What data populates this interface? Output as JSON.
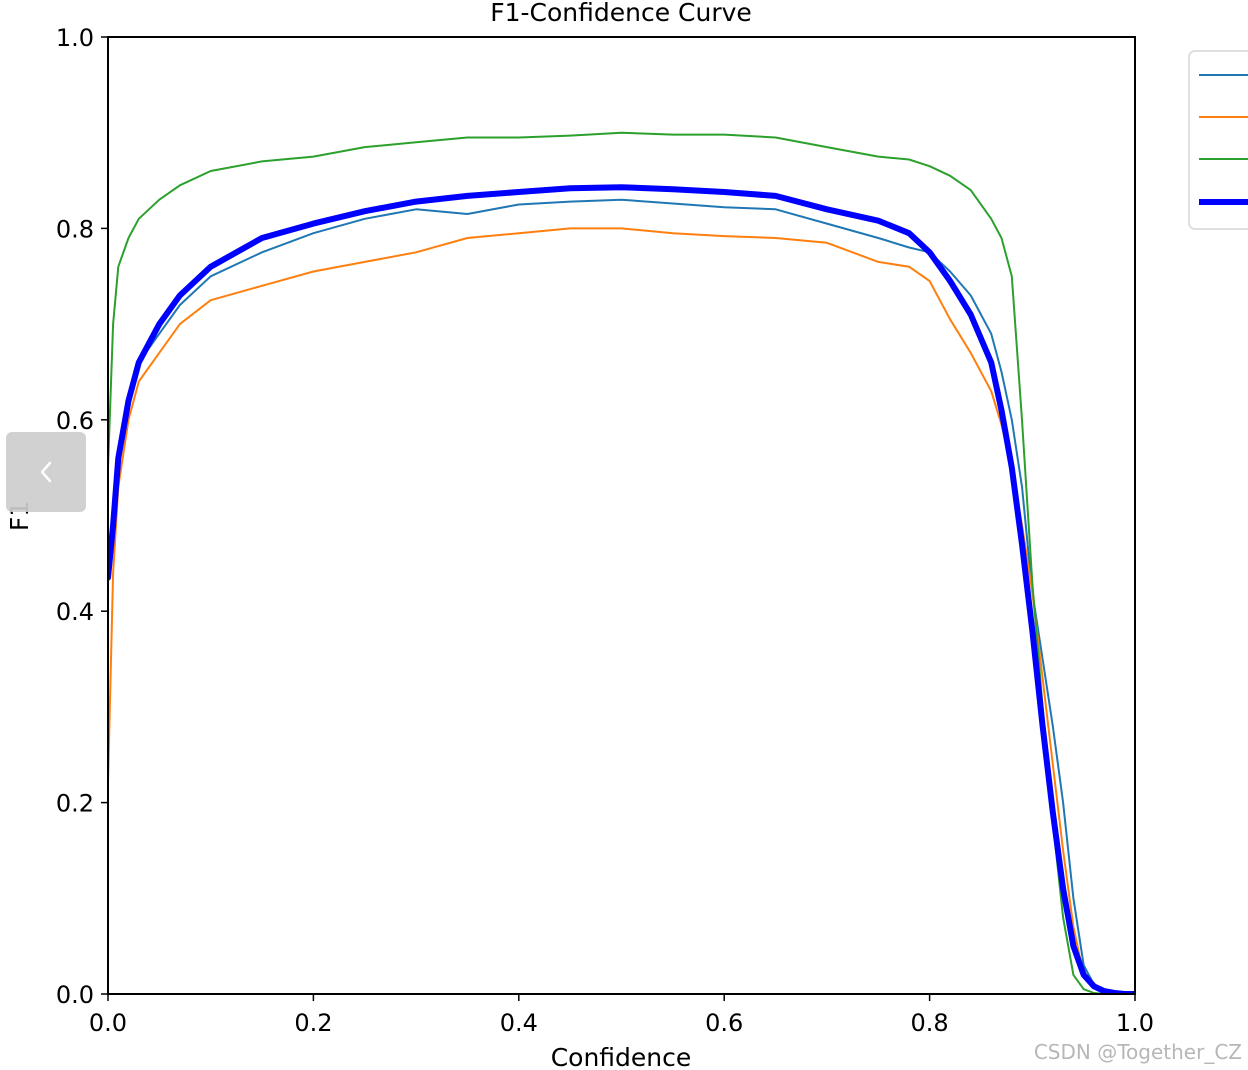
{
  "chart_data": {
    "type": "line",
    "title": "F1-Confidence Curve",
    "xlabel": "Confidence",
    "ylabel": "F1",
    "xlim": [
      0.0,
      1.0
    ],
    "ylim": [
      0.0,
      1.0
    ],
    "xticks": [
      "0.0",
      "0.2",
      "0.4",
      "0.6",
      "0.8",
      "1.0"
    ],
    "yticks": [
      "0.0",
      "0.2",
      "0.4",
      "0.6",
      "0.8",
      "1.0"
    ],
    "grid": false,
    "legend_position": "top-right",
    "series": [
      {
        "color": "#1f77b4",
        "linewidth": 2,
        "x": [
          0.0,
          0.005,
          0.01,
          0.02,
          0.03,
          0.05,
          0.07,
          0.1,
          0.15,
          0.2,
          0.25,
          0.3,
          0.35,
          0.4,
          0.45,
          0.5,
          0.55,
          0.6,
          0.65,
          0.7,
          0.75,
          0.78,
          0.8,
          0.82,
          0.84,
          0.86,
          0.87,
          0.88,
          0.89,
          0.9,
          0.91,
          0.92,
          0.93,
          0.94,
          0.95,
          0.96,
          0.97,
          0.98,
          0.99,
          1.0
        ],
        "y": [
          0.45,
          0.5,
          0.55,
          0.62,
          0.66,
          0.69,
          0.72,
          0.75,
          0.775,
          0.795,
          0.81,
          0.82,
          0.815,
          0.825,
          0.828,
          0.83,
          0.826,
          0.822,
          0.82,
          0.805,
          0.79,
          0.78,
          0.775,
          0.755,
          0.73,
          0.69,
          0.65,
          0.6,
          0.53,
          0.42,
          0.35,
          0.28,
          0.2,
          0.1,
          0.03,
          0.01,
          0.003,
          0.001,
          0.0,
          0.0
        ]
      },
      {
        "color": "#ff7f0e",
        "linewidth": 2,
        "x": [
          0.0,
          0.005,
          0.01,
          0.02,
          0.03,
          0.05,
          0.07,
          0.1,
          0.15,
          0.2,
          0.25,
          0.3,
          0.35,
          0.4,
          0.45,
          0.5,
          0.55,
          0.6,
          0.65,
          0.7,
          0.75,
          0.78,
          0.8,
          0.82,
          0.84,
          0.86,
          0.87,
          0.88,
          0.89,
          0.9,
          0.91,
          0.92,
          0.93,
          0.94,
          0.95,
          0.96,
          0.97,
          0.98,
          0.99,
          1.0
        ],
        "y": [
          0.22,
          0.44,
          0.53,
          0.6,
          0.64,
          0.67,
          0.7,
          0.725,
          0.74,
          0.755,
          0.765,
          0.775,
          0.79,
          0.795,
          0.8,
          0.8,
          0.795,
          0.792,
          0.79,
          0.785,
          0.765,
          0.76,
          0.745,
          0.705,
          0.67,
          0.63,
          0.595,
          0.55,
          0.49,
          0.42,
          0.33,
          0.24,
          0.15,
          0.07,
          0.02,
          0.006,
          0.002,
          0.0,
          0.0,
          0.0
        ]
      },
      {
        "color": "#2ca02c",
        "linewidth": 2,
        "x": [
          0.0,
          0.005,
          0.01,
          0.02,
          0.03,
          0.05,
          0.07,
          0.1,
          0.15,
          0.2,
          0.25,
          0.3,
          0.35,
          0.4,
          0.45,
          0.5,
          0.55,
          0.6,
          0.65,
          0.7,
          0.75,
          0.78,
          0.8,
          0.82,
          0.84,
          0.86,
          0.87,
          0.88,
          0.89,
          0.9,
          0.91,
          0.92,
          0.93,
          0.94,
          0.95,
          0.96,
          0.97,
          0.98,
          0.99,
          1.0
        ],
        "y": [
          0.55,
          0.7,
          0.76,
          0.79,
          0.81,
          0.83,
          0.845,
          0.86,
          0.87,
          0.875,
          0.885,
          0.89,
          0.895,
          0.895,
          0.897,
          0.9,
          0.898,
          0.898,
          0.895,
          0.885,
          0.875,
          0.872,
          0.865,
          0.855,
          0.84,
          0.81,
          0.79,
          0.75,
          0.6,
          0.43,
          0.3,
          0.18,
          0.08,
          0.02,
          0.005,
          0.001,
          0.0,
          0.0,
          0.0,
          0.0
        ]
      },
      {
        "color": "#0000ff",
        "linewidth": 6,
        "x": [
          0.0,
          0.005,
          0.01,
          0.02,
          0.03,
          0.05,
          0.07,
          0.1,
          0.15,
          0.2,
          0.25,
          0.3,
          0.35,
          0.4,
          0.45,
          0.5,
          0.55,
          0.6,
          0.65,
          0.7,
          0.75,
          0.78,
          0.8,
          0.82,
          0.84,
          0.86,
          0.87,
          0.88,
          0.89,
          0.9,
          0.91,
          0.92,
          0.93,
          0.94,
          0.95,
          0.96,
          0.97,
          0.98,
          0.99,
          1.0
        ],
        "y": [
          0.435,
          0.49,
          0.56,
          0.62,
          0.66,
          0.7,
          0.73,
          0.76,
          0.79,
          0.805,
          0.818,
          0.828,
          0.834,
          0.838,
          0.842,
          0.843,
          0.841,
          0.838,
          0.834,
          0.82,
          0.808,
          0.795,
          0.775,
          0.745,
          0.71,
          0.66,
          0.61,
          0.55,
          0.47,
          0.38,
          0.28,
          0.19,
          0.11,
          0.05,
          0.02,
          0.008,
          0.003,
          0.001,
          0.0,
          0.0
        ]
      }
    ]
  },
  "watermark": "CSDN @Together_CZ"
}
